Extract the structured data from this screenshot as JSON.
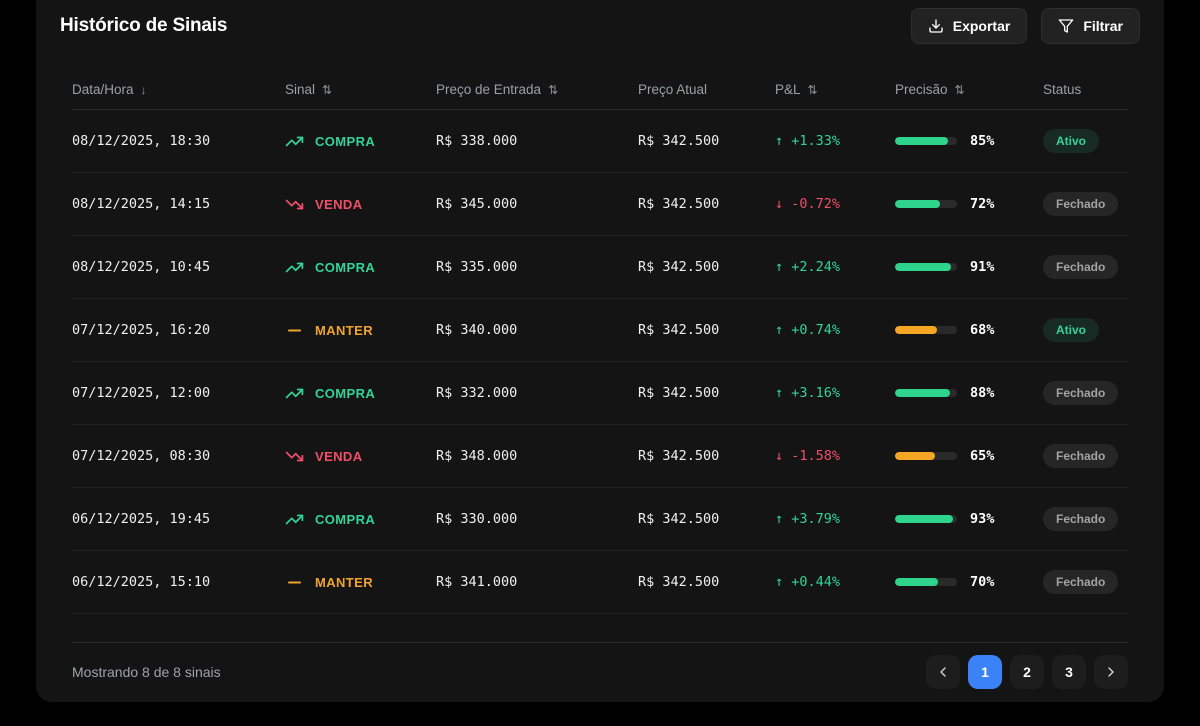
{
  "header": {
    "title": "Histórico de Sinais",
    "export_label": "Exportar",
    "filter_label": "Filtrar"
  },
  "table": {
    "columns": [
      {
        "label": "Data/Hora",
        "sort": "desc"
      },
      {
        "label": "Sinal",
        "sort": "both"
      },
      {
        "label": "Preço de Entrada",
        "sort": "both"
      },
      {
        "label": "Preço Atual",
        "sort": "none"
      },
      {
        "label": "P&L",
        "sort": "both"
      },
      {
        "label": "Precisão",
        "sort": "both"
      },
      {
        "label": "Status",
        "sort": "none"
      }
    ],
    "rows": [
      {
        "datetime": "08/12/2025, 18:30",
        "signal_label": "COMPRA",
        "signal_type": "buy",
        "entry_price": "R$ 338.000",
        "current_price": "R$ 342.500",
        "pnl_value": "+1.33%",
        "pnl_direction": "up",
        "precision_pct": 85,
        "precision_level": "green",
        "status_label": "Ativo",
        "status_type": "active"
      },
      {
        "datetime": "08/12/2025, 14:15",
        "signal_label": "VENDA",
        "signal_type": "sell",
        "entry_price": "R$ 345.000",
        "current_price": "R$ 342.500",
        "pnl_value": "-0.72%",
        "pnl_direction": "down",
        "precision_pct": 72,
        "precision_level": "green",
        "status_label": "Fechado",
        "status_type": "closed"
      },
      {
        "datetime": "08/12/2025, 10:45",
        "signal_label": "COMPRA",
        "signal_type": "buy",
        "entry_price": "R$ 335.000",
        "current_price": "R$ 342.500",
        "pnl_value": "+2.24%",
        "pnl_direction": "up",
        "precision_pct": 91,
        "precision_level": "green",
        "status_label": "Fechado",
        "status_type": "closed"
      },
      {
        "datetime": "07/12/2025, 16:20",
        "signal_label": "MANTER",
        "signal_type": "hold",
        "entry_price": "R$ 340.000",
        "current_price": "R$ 342.500",
        "pnl_value": "+0.74%",
        "pnl_direction": "up",
        "precision_pct": 68,
        "precision_level": "amber",
        "status_label": "Ativo",
        "status_type": "active"
      },
      {
        "datetime": "07/12/2025, 12:00",
        "signal_label": "COMPRA",
        "signal_type": "buy",
        "entry_price": "R$ 332.000",
        "current_price": "R$ 342.500",
        "pnl_value": "+3.16%",
        "pnl_direction": "up",
        "precision_pct": 88,
        "precision_level": "green",
        "status_label": "Fechado",
        "status_type": "closed"
      },
      {
        "datetime": "07/12/2025, 08:30",
        "signal_label": "VENDA",
        "signal_type": "sell",
        "entry_price": "R$ 348.000",
        "current_price": "R$ 342.500",
        "pnl_value": "-1.58%",
        "pnl_direction": "down",
        "precision_pct": 65,
        "precision_level": "amber",
        "status_label": "Fechado",
        "status_type": "closed"
      },
      {
        "datetime": "06/12/2025, 19:45",
        "signal_label": "COMPRA",
        "signal_type": "buy",
        "entry_price": "R$ 330.000",
        "current_price": "R$ 342.500",
        "pnl_value": "+3.79%",
        "pnl_direction": "up",
        "precision_pct": 93,
        "precision_level": "green",
        "status_label": "Fechado",
        "status_type": "closed"
      },
      {
        "datetime": "06/12/2025, 15:10",
        "signal_label": "MANTER",
        "signal_type": "hold",
        "entry_price": "R$ 341.000",
        "current_price": "R$ 342.500",
        "pnl_value": "+0.44%",
        "pnl_direction": "up",
        "precision_pct": 70,
        "precision_level": "green",
        "status_label": "Fechado",
        "status_type": "closed"
      }
    ]
  },
  "footer": {
    "summary": "Mostrando 8 de 8 sinais",
    "pages": [
      "1",
      "2",
      "3"
    ],
    "active_page": "1"
  },
  "colors": {
    "green": "#34d399",
    "red": "#ef4f68",
    "amber": "#f0a330",
    "blue": "#3b82f6",
    "progress_green": "#2ed48c",
    "progress_amber": "#f5a623",
    "badge_active_bg": "rgba(52, 211, 153, 0.12)",
    "badge_active_text": "#34d399",
    "badge_closed_bg": "#262626",
    "badge_closed_text": "#a3a3a3"
  }
}
